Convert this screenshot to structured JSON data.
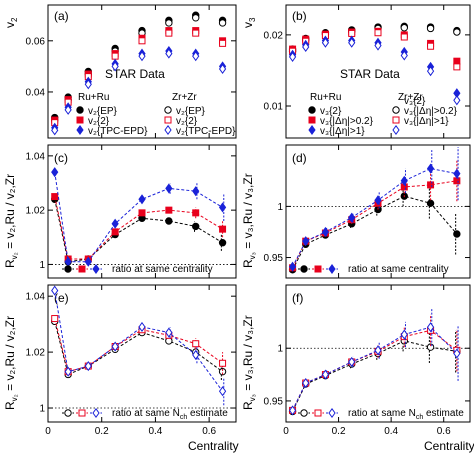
{
  "chart_data": [
    {
      "panel": "(a)",
      "type": "scatter",
      "ylabel": "v₂",
      "ylabel_main": "v",
      "ylabel_sub": "2",
      "xlim": [
        0,
        0.7
      ],
      "ylim": [
        0.022,
        0.074
      ],
      "xticks": [
        0,
        0.2,
        0.4,
        0.6
      ],
      "xticklabels": [
        "",
        "",
        "",
        ""
      ],
      "yticks": [
        0.04,
        0.06
      ],
      "yticklabels": [
        "0.04",
        "0.06"
      ],
      "annotation": "STAR Data",
      "legend_titles": [
        "Ru+Ru",
        "Zr+Zr"
      ],
      "legend": [
        "v₂{EP}",
        "v₂{2}",
        "v₂{TPC-EPD}"
      ],
      "series": [
        {
          "name": "v₂{EP} Ru+Ru",
          "color": "#000000",
          "marker": "circle",
          "filled": true,
          "x": [
            0.025,
            0.075,
            0.15,
            0.25,
            0.35,
            0.45,
            0.55,
            0.65
          ],
          "y": [
            0.03,
            0.038,
            0.048,
            0.057,
            0.064,
            0.068,
            0.07,
            0.068
          ]
        },
        {
          "name": "v₂{EP} Zr+Zr",
          "color": "#000000",
          "marker": "circle",
          "filled": false,
          "x": [
            0.025,
            0.075,
            0.15,
            0.25,
            0.35,
            0.45,
            0.55,
            0.65
          ],
          "y": [
            0.029,
            0.037,
            0.047,
            0.056,
            0.063,
            0.067,
            0.069,
            0.067
          ]
        },
        {
          "name": "v₂{2} Ru+Ru",
          "color": "#e8001c",
          "marker": "square",
          "filled": true,
          "x": [
            0.025,
            0.075,
            0.15,
            0.25,
            0.35,
            0.45,
            0.55,
            0.65
          ],
          "y": [
            0.029,
            0.037,
            0.047,
            0.055,
            0.061,
            0.064,
            0.064,
            0.06
          ]
        },
        {
          "name": "v₂{2} Zr+Zr",
          "color": "#e8001c",
          "marker": "square",
          "filled": false,
          "x": [
            0.025,
            0.075,
            0.15,
            0.25,
            0.35,
            0.45,
            0.55,
            0.65
          ],
          "y": [
            0.028,
            0.036,
            0.046,
            0.054,
            0.06,
            0.063,
            0.063,
            0.059
          ]
        },
        {
          "name": "v₂{TPC-EPD} Ru+Ru",
          "color": "#1a22d8",
          "marker": "diamond",
          "filled": true,
          "x": [
            0.025,
            0.075,
            0.15,
            0.25,
            0.35,
            0.45,
            0.55,
            0.65
          ],
          "y": [
            0.026,
            0.034,
            0.044,
            0.051,
            0.055,
            0.056,
            0.055,
            0.05
          ]
        },
        {
          "name": "v₂{TPC-EPD} Zr+Zr",
          "color": "#1a22d8",
          "marker": "diamond",
          "filled": false,
          "x": [
            0.025,
            0.075,
            0.15,
            0.25,
            0.35,
            0.45,
            0.55,
            0.65
          ],
          "y": [
            0.025,
            0.033,
            0.043,
            0.05,
            0.054,
            0.055,
            0.054,
            0.049
          ]
        }
      ]
    },
    {
      "panel": "(b)",
      "type": "scatter",
      "ylabel": "v₃",
      "ylabel_main": "v",
      "ylabel_sub": "3",
      "xlim": [
        0,
        0.7
      ],
      "ylim": [
        0.0055,
        0.0242
      ],
      "xticks": [
        0,
        0.2,
        0.4,
        0.6
      ],
      "xticklabels": [
        "",
        "",
        "",
        ""
      ],
      "yticks": [
        0.01,
        0.02
      ],
      "yticklabels": [
        "0.01",
        "0.02"
      ],
      "annotation": "STAR Data",
      "legend_titles": [
        "Ru+Ru",
        "Zr+Zr"
      ],
      "legend": [
        "v₃{2}",
        "v₃{|Δη|>0.2}",
        "v₃{|Δη|>1}"
      ],
      "series": [
        {
          "name": "v₃{2} Ru+Ru",
          "color": "#000000",
          "marker": "circle",
          "filled": true,
          "x": [
            0.025,
            0.075,
            0.15,
            0.25,
            0.35,
            0.45,
            0.55,
            0.65
          ],
          "y": [
            0.018,
            0.0195,
            0.0203,
            0.0207,
            0.0211,
            0.0212,
            0.0211,
            0.0206
          ]
        },
        {
          "name": "v₃{2} Zr+Zr",
          "color": "#000000",
          "marker": "circle",
          "filled": false,
          "x": [
            0.025,
            0.075,
            0.15,
            0.25,
            0.35,
            0.45,
            0.55,
            0.65
          ],
          "y": [
            0.0177,
            0.0193,
            0.0201,
            0.0205,
            0.0209,
            0.021,
            0.0209,
            0.0204
          ]
        },
        {
          "name": "v₃{|Δη|>0.2} Ru+Ru",
          "color": "#e8001c",
          "marker": "square",
          "filled": true,
          "x": [
            0.025,
            0.075,
            0.15,
            0.25,
            0.35,
            0.45,
            0.55,
            0.65
          ],
          "y": [
            0.018,
            0.0194,
            0.0201,
            0.0204,
            0.0205,
            0.02,
            0.0188,
            0.0163
          ]
        },
        {
          "name": "v₃{|Δη|>0.2} Zr+Zr",
          "color": "#e8001c",
          "marker": "square",
          "filled": false,
          "x": [
            0.025,
            0.075,
            0.15,
            0.25,
            0.35,
            0.45,
            0.55,
            0.65
          ],
          "y": [
            0.0177,
            0.0191,
            0.0199,
            0.0202,
            0.0203,
            0.0197,
            0.0184,
            0.0155
          ]
        },
        {
          "name": "v₃{|Δη|>1} Ru+Ru",
          "color": "#1a22d8",
          "marker": "diamond",
          "filled": true,
          "x": [
            0.025,
            0.075,
            0.15,
            0.25,
            0.35,
            0.45,
            0.55,
            0.65
          ],
          "y": [
            0.0172,
            0.0186,
            0.0192,
            0.0192,
            0.0189,
            0.0176,
            0.0155,
            0.0118
          ]
        },
        {
          "name": "v₃{|Δη|>1} Zr+Zr",
          "color": "#1a22d8",
          "marker": "diamond",
          "filled": false,
          "x": [
            0.025,
            0.075,
            0.15,
            0.25,
            0.35,
            0.45,
            0.55,
            0.65
          ],
          "y": [
            0.0169,
            0.0183,
            0.0189,
            0.0189,
            0.0185,
            0.0171,
            0.0149,
            0.0108
          ]
        }
      ]
    },
    {
      "panel": "(c)",
      "type": "line",
      "ylabel_main": "R",
      "ylabel_sub": "v₂",
      "ylabel_rest": " = v₂,Ru / v₂,Zr",
      "xlim": [
        0,
        0.7
      ],
      "ylim": [
        0.995,
        1.044
      ],
      "xticks": [
        0,
        0.2,
        0.4,
        0.6
      ],
      "xticklabels": [
        "",
        "",
        "",
        ""
      ],
      "yticks": [
        1,
        1.02,
        1.04
      ],
      "yticklabels": [
        "1",
        "1.02",
        "1.04"
      ],
      "reference_line": 1,
      "legend": [
        "ratio at same centrality"
      ],
      "series": [
        {
          "name": "EP",
          "color": "#000000",
          "marker": "circle",
          "filled": true,
          "x": [
            0.025,
            0.075,
            0.15,
            0.25,
            0.35,
            0.45,
            0.55,
            0.65
          ],
          "y": [
            1.024,
            1.001,
            1.002,
            1.011,
            1.017,
            1.016,
            1.014,
            1.008
          ],
          "err": [
            0,
            0,
            0,
            0,
            0,
            0,
            0.002,
            0.003
          ]
        },
        {
          "name": "2",
          "color": "#e8001c",
          "marker": "square",
          "filled": true,
          "x": [
            0.025,
            0.075,
            0.15,
            0.25,
            0.35,
            0.45,
            0.55,
            0.65
          ],
          "y": [
            1.025,
            1.002,
            1.002,
            1.012,
            1.019,
            1.02,
            1.019,
            1.013
          ],
          "err": [
            0,
            0,
            0,
            0,
            0,
            0,
            0.002,
            0.003
          ]
        },
        {
          "name": "TPC-EPD",
          "color": "#1a22d8",
          "marker": "diamond",
          "filled": true,
          "x": [
            0.025,
            0.075,
            0.15,
            0.25,
            0.35,
            0.45,
            0.55,
            0.65
          ],
          "y": [
            1.034,
            1.001,
            1.001,
            1.015,
            1.024,
            1.028,
            1.027,
            1.021
          ],
          "err": [
            0,
            0,
            0,
            0,
            0.001,
            0.002,
            0.003,
            0.005
          ]
        }
      ]
    },
    {
      "panel": "(d)",
      "type": "line",
      "ylabel_main": "R",
      "ylabel_sub": "v₃",
      "ylabel_rest": " = v₃,Ru / v₃,Zr",
      "xlim": [
        0,
        0.7
      ],
      "ylim": [
        0.93,
        1.06
      ],
      "xticks": [
        0,
        0.2,
        0.4,
        0.6
      ],
      "xticklabels": [
        "",
        "",
        "",
        ""
      ],
      "yticks": [
        0.95,
        1
      ],
      "yticklabels": [
        "0.95",
        "1"
      ],
      "reference_line": 1,
      "legend": [
        "ratio at same centrality"
      ],
      "series": [
        {
          "name": "2",
          "color": "#000000",
          "marker": "circle",
          "filled": true,
          "x": [
            0.025,
            0.075,
            0.15,
            0.25,
            0.35,
            0.45,
            0.55,
            0.65
          ],
          "y": [
            0.938,
            0.963,
            0.972,
            0.983,
            0.997,
            1.01,
            1.003,
            0.973
          ],
          "err": [
            0.002,
            0.003,
            0.003,
            0.004,
            0.006,
            0.01,
            0.015,
            0.02
          ]
        },
        {
          "name": "|Δη|>0.2",
          "color": "#e8001c",
          "marker": "square",
          "filled": true,
          "x": [
            0.025,
            0.075,
            0.15,
            0.25,
            0.35,
            0.45,
            0.55,
            0.65
          ],
          "y": [
            0.94,
            0.966,
            0.974,
            0.987,
            1.003,
            1.019,
            1.021,
            1.025
          ],
          "err": [
            0.002,
            0.003,
            0.003,
            0.004,
            0.006,
            0.01,
            0.015,
            0.02
          ]
        },
        {
          "name": "|Δη|>1",
          "color": "#1a22d8",
          "marker": "diamond",
          "filled": true,
          "x": [
            0.025,
            0.075,
            0.15,
            0.25,
            0.35,
            0.45,
            0.55,
            0.65
          ],
          "y": [
            0.941,
            0.966,
            0.975,
            0.989,
            1.006,
            1.025,
            1.037,
            1.032
          ],
          "err": [
            0.002,
            0.003,
            0.004,
            0.005,
            0.008,
            0.012,
            0.018,
            0.026
          ]
        }
      ]
    },
    {
      "panel": "(e)",
      "type": "line",
      "ylabel_main": "R",
      "ylabel_sub": "v₂",
      "ylabel_rest": " = v₂,Ru / v₂,Zr",
      "xlim": [
        0,
        0.7
      ],
      "ylim": [
        0.995,
        1.044
      ],
      "xticks": [
        0,
        0.2,
        0.4,
        0.6
      ],
      "xticklabels": [
        "0",
        "0.2",
        "0.4",
        "0.6"
      ],
      "yticks": [
        1,
        1.02,
        1.04
      ],
      "yticklabels": [
        "1",
        "1.02",
        "1.04"
      ],
      "xlabel": "Centrality",
      "reference_line": 1,
      "legend": [
        "ratio at same N",
        "ch",
        " estimate"
      ],
      "series": [
        {
          "name": "EP",
          "color": "#000000",
          "marker": "circle",
          "filled": false,
          "x": [
            0.025,
            0.075,
            0.15,
            0.25,
            0.35,
            0.45,
            0.55,
            0.65
          ],
          "y": [
            1.031,
            1.012,
            1.015,
            1.021,
            1.027,
            1.024,
            1.02,
            1.013
          ],
          "err": [
            0,
            0,
            0,
            0,
            0,
            0,
            0.002,
            0.003
          ]
        },
        {
          "name": "2",
          "color": "#e8001c",
          "marker": "square",
          "filled": false,
          "x": [
            0.025,
            0.075,
            0.15,
            0.25,
            0.35,
            0.45,
            0.55,
            0.65
          ],
          "y": [
            1.032,
            1.013,
            1.015,
            1.022,
            1.028,
            1.026,
            1.023,
            1.016
          ],
          "err": [
            0,
            0,
            0,
            0,
            0,
            0,
            0.002,
            0.004
          ]
        },
        {
          "name": "TPC-EPD",
          "color": "#1a22d8",
          "marker": "diamond",
          "filled": false,
          "x": [
            0.025,
            0.075,
            0.15,
            0.25,
            0.35,
            0.45,
            0.55,
            0.65
          ],
          "y": [
            1.042,
            1.013,
            1.015,
            1.022,
            1.029,
            1.027,
            1.019,
            1.006
          ],
          "err": [
            0,
            0,
            0,
            0,
            0.001,
            0.002,
            0.003,
            0.005
          ]
        }
      ]
    },
    {
      "panel": "(f)",
      "type": "line",
      "ylabel_main": "R",
      "ylabel_sub": "v₃",
      "ylabel_rest": " = v₃,Ru / v₃,Zr",
      "xlim": [
        0,
        0.7
      ],
      "ylim": [
        0.93,
        1.06
      ],
      "xticks": [
        0,
        0.2,
        0.4,
        0.6
      ],
      "xticklabels": [
        "0",
        "0.2",
        "0.4",
        "0.6"
      ],
      "yticks": [
        0.95,
        1
      ],
      "yticklabels": [
        "0.95",
        "1"
      ],
      "xlabel": "Centrality",
      "reference_line": 1,
      "legend": [
        "ratio at same N",
        "ch",
        " estimate"
      ],
      "series": [
        {
          "name": "2",
          "color": "#000000",
          "marker": "circle",
          "filled": false,
          "x": [
            0.025,
            0.075,
            0.15,
            0.25,
            0.35,
            0.45,
            0.55,
            0.65
          ],
          "y": [
            0.94,
            0.966,
            0.974,
            0.985,
            0.995,
            1.007,
            1.001,
            0.997
          ],
          "err": [
            0.002,
            0.003,
            0.003,
            0.004,
            0.006,
            0.01,
            0.015,
            0.02
          ]
        },
        {
          "name": "|Δη|>0.2",
          "color": "#e8001c",
          "marker": "square",
          "filled": false,
          "x": [
            0.025,
            0.075,
            0.15,
            0.25,
            0.35,
            0.45,
            0.55,
            0.65
          ],
          "y": [
            0.941,
            0.967,
            0.975,
            0.987,
            0.997,
            1.011,
            1.017,
            0.998
          ],
          "err": [
            0.002,
            0.003,
            0.003,
            0.004,
            0.006,
            0.01,
            0.015,
            0.02
          ]
        },
        {
          "name": "|Δη|>1",
          "color": "#1a22d8",
          "marker": "diamond",
          "filled": false,
          "x": [
            0.025,
            0.075,
            0.15,
            0.25,
            0.35,
            0.45,
            0.55,
            0.65
          ],
          "y": [
            0.941,
            0.967,
            0.975,
            0.987,
            0.998,
            1.013,
            1.02,
            0.995
          ],
          "err": [
            0.002,
            0.003,
            0.004,
            0.005,
            0.008,
            0.012,
            0.018,
            0.026
          ]
        }
      ]
    }
  ]
}
